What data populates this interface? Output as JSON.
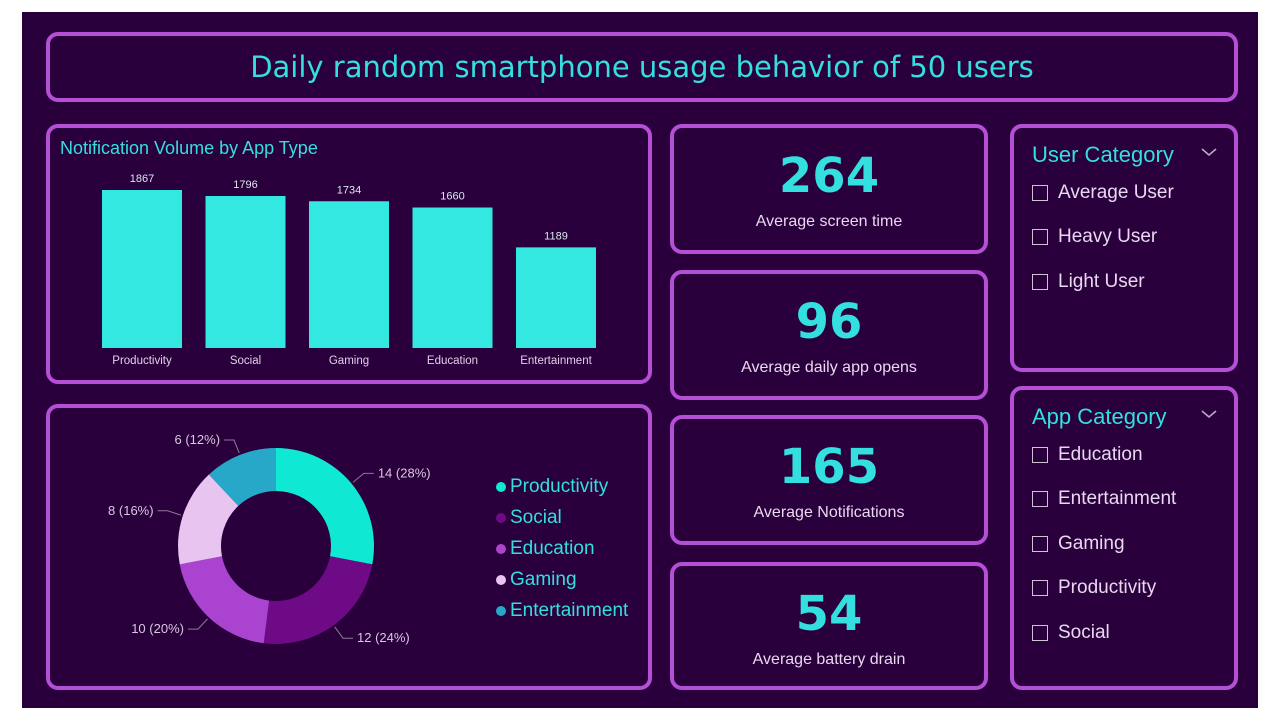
{
  "header": {
    "title": "Daily random smartphone usage behavior of 50 users"
  },
  "kpis": [
    {
      "value": "264",
      "label": "Average screen time"
    },
    {
      "value": "96",
      "label": "Average daily app opens"
    },
    {
      "value": "165",
      "label": "Average Notifications"
    },
    {
      "value": "54",
      "label": "Average battery drain"
    }
  ],
  "slicers": {
    "user_category": {
      "title": "User Category",
      "items": [
        "Average User",
        "Heavy User",
        "Light User"
      ]
    },
    "app_category": {
      "title": "App Category",
      "items": [
        "Education",
        "Entertainment",
        "Gaming",
        "Productivity",
        "Social"
      ]
    }
  },
  "colors": {
    "accent": "#33dfdf",
    "panel_border": "#b44fd6",
    "background": "#2a003c",
    "bar": "#33e8e0"
  },
  "chart_data": [
    {
      "type": "bar",
      "title": "Notification Volume by App Type",
      "categories": [
        "Productivity",
        "Social",
        "Gaming",
        "Education",
        "Entertainment"
      ],
      "values": [
        1867,
        1796,
        1734,
        1660,
        1189
      ],
      "data_labels": [
        "1867",
        "1796",
        "1734",
        "1660",
        "1189"
      ],
      "ylim": [
        0,
        1867
      ],
      "grid": false
    },
    {
      "type": "pie",
      "subtype": "donut",
      "legend_position": "right",
      "slices": [
        {
          "name": "Productivity",
          "value": 14,
          "label": "14 (28%)",
          "color": "#0fe8d2"
        },
        {
          "name": "Social",
          "value": 12,
          "label": "12 (24%)",
          "color": "#6e0a86"
        },
        {
          "name": "Education",
          "value": 10,
          "label": "10 (20%)",
          "color": "#aa44d0"
        },
        {
          "name": "Gaming",
          "value": 8,
          "label": "8 (16%)",
          "color": "#e8c4f0"
        },
        {
          "name": "Entertainment",
          "value": 6,
          "label": "6 (12%)",
          "color": "#28a8c8"
        }
      ]
    }
  ]
}
